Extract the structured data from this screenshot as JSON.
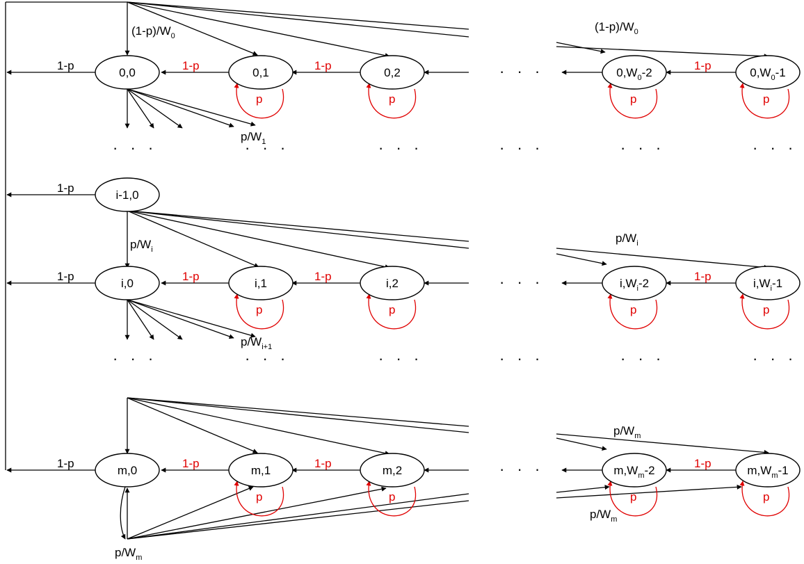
{
  "diagram": {
    "colors": {
      "stroke": "#000000",
      "transition": "#e00000",
      "background": "#ffffff"
    },
    "nodes": [
      {
        "id": "n00",
        "label": "0,0"
      },
      {
        "id": "n01",
        "label": "0,1"
      },
      {
        "id": "n02",
        "label": "0,2"
      },
      {
        "id": "n0w2",
        "label": "0,W",
        "sub": "0",
        "suffix": "-2"
      },
      {
        "id": "n0w1",
        "label": "0,W",
        "sub": "0",
        "suffix": "-1"
      },
      {
        "id": "ni10",
        "label": "i-1,0"
      },
      {
        "id": "ni0",
        "label": "i,0"
      },
      {
        "id": "ni1",
        "label": "i,1"
      },
      {
        "id": "ni2",
        "label": "i,2"
      },
      {
        "id": "niw2",
        "label": "i,W",
        "sub": "i",
        "suffix": "-2"
      },
      {
        "id": "niw1",
        "label": "i,W",
        "sub": "i",
        "suffix": "-1"
      },
      {
        "id": "nm0",
        "label": "m,0"
      },
      {
        "id": "nm1",
        "label": "m,1"
      },
      {
        "id": "nm2",
        "label": "m,2"
      },
      {
        "id": "nmw2",
        "label": "m,W",
        "sub": "m",
        "suffix": "-2"
      },
      {
        "id": "nmw1",
        "label": "m,W",
        "sub": "m",
        "suffix": "-1"
      }
    ],
    "labels": {
      "one_minus_p": "1-p",
      "p": "p",
      "dots": "· · ·",
      "row0_in_left": {
        "text": "(1-p)/W",
        "sub": "0"
      },
      "row0_in_right": {
        "text": "(1-p)/W",
        "sub": "0"
      },
      "row0_out": {
        "text": "p/W",
        "sub": "1"
      },
      "rowi_in_left": {
        "text": "p/W",
        "sub": "i"
      },
      "rowi_in_right": {
        "text": "p/W",
        "sub": "i"
      },
      "rowi_out": {
        "text": "p/W",
        "sub": "i+1"
      },
      "rowm_in_right": {
        "text": "p/W",
        "sub": "m"
      },
      "rowm_bottom_right": {
        "text": "p/W",
        "sub": "m"
      },
      "rowm_bottom_left": {
        "text": "p/W",
        "sub": "m"
      }
    }
  }
}
